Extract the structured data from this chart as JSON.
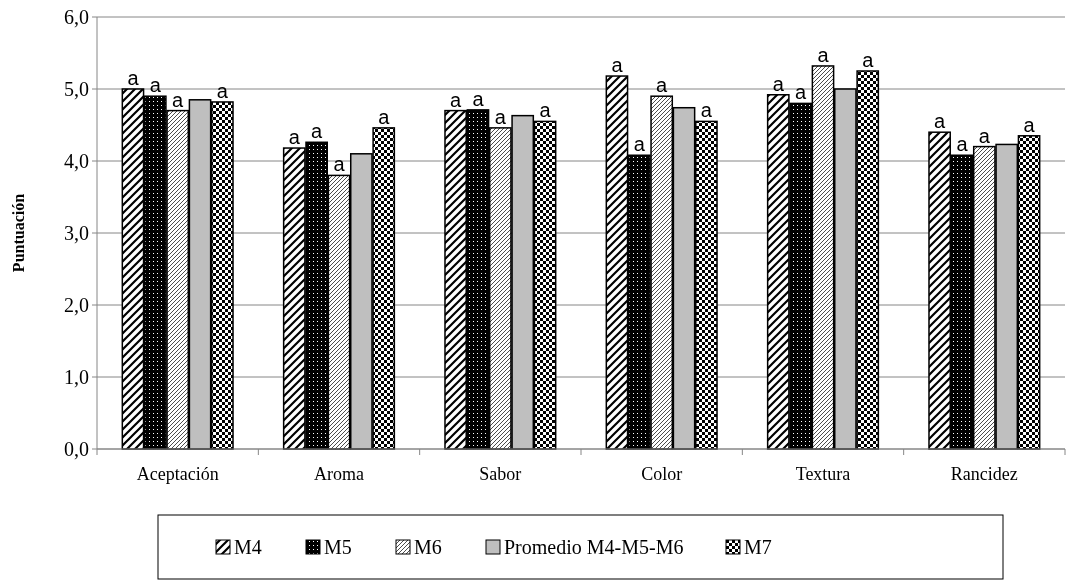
{
  "chart_data": {
    "type": "bar",
    "ylabel": "Puntuación",
    "categories": [
      "Aceptación",
      "Aroma",
      "Sabor",
      "Color",
      "Textura",
      "Rancidez"
    ],
    "series": [
      {
        "name": "M4",
        "color": "#000000",
        "values": [
          5.0,
          4.18,
          4.7,
          5.18,
          4.92,
          4.4
        ],
        "value_labels": [
          "a",
          "a",
          "a",
          "a",
          "a",
          "a"
        ]
      },
      {
        "name": "M5",
        "color": "#000000",
        "values": [
          4.9,
          4.26,
          4.71,
          4.08,
          4.8,
          4.08
        ],
        "value_labels": [
          "a",
          "a",
          "a",
          "a",
          "a",
          "a"
        ]
      },
      {
        "name": "M6",
        "color": "#000000",
        "values": [
          4.7,
          3.8,
          4.46,
          4.9,
          5.32,
          4.2
        ],
        "value_labels": [
          "a",
          "a",
          "a",
          "a",
          "a",
          "a"
        ]
      },
      {
        "name": "Promedio M4-M5-M6",
        "color": "#bfbfbf",
        "values": [
          4.85,
          4.1,
          4.63,
          4.74,
          5.0,
          4.23
        ]
      },
      {
        "name": "M7",
        "color": "#000000",
        "values": [
          4.82,
          4.46,
          4.55,
          4.55,
          5.25,
          4.35
        ],
        "value_labels": [
          "a",
          "a",
          "a",
          "a",
          "a",
          "a"
        ]
      }
    ],
    "ylim": [
      0,
      6
    ],
    "yticks": [
      {
        "value": 0,
        "label": "0,0"
      },
      {
        "value": 1,
        "label": "1,0"
      },
      {
        "value": 2,
        "label": "2,0"
      },
      {
        "value": 3,
        "label": "3,0"
      },
      {
        "value": 4,
        "label": "4,0"
      },
      {
        "value": 5,
        "label": "5,0"
      },
      {
        "value": 6,
        "label": "6,0"
      }
    ],
    "grid": "y",
    "legend": "bottom"
  }
}
